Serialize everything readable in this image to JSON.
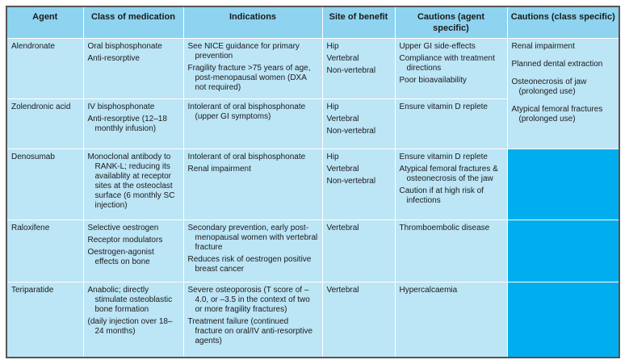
{
  "table": {
    "header": [
      "Agent",
      "Class of medication",
      "Indications",
      "Site of benefit",
      "Cautions (agent specific)",
      "Cautions (class specific)"
    ],
    "rows": [
      {
        "agent": "Alendronate",
        "cells": [
          [
            "Oral bisphosphonate",
            "Anti-resorptive"
          ],
          [
            "See NICE guidance for primary prevention",
            "Fragility fracture >75 years of age, post-menopausal women (DXA not required)"
          ],
          [
            "Hip",
            "Vertebral",
            "Non-vertebral"
          ],
          [
            "Upper GI side-effects",
            "Compliance with treatment directions",
            "Poor bioavailability"
          ]
        ],
        "class_cautions": [
          "Renal impairment",
          "Planned dental extraction",
          "Osteonecrosis of jaw (prolonged use)",
          "Atypical femoral fractures (prolonged use)"
        ]
      },
      {
        "agent": "Zolendronic acid",
        "cells": [
          [
            "IV bisphosphonate",
            "Anti-resorptive (12–18 monthly infusion)"
          ],
          [
            "Intolerant of oral bisphosphonate (upper GI symptoms)"
          ],
          [
            "Hip",
            "Vertebral",
            "Non-vertebral"
          ],
          [
            "Ensure vitamin D replete"
          ]
        ]
      },
      {
        "agent": "Denosumab",
        "cells": [
          [
            "Monoclonal antibody to RANK-L; reducing its availablity at receptor sites at the osteoclast surface (6 monthly SC injection)"
          ],
          [
            "Intolerant of oral bisphosphonate",
            "Renal impairment"
          ],
          [
            "Hip",
            "Vertebral",
            "Non-vertebral"
          ],
          [
            "Ensure vitamin D replete",
            "Atypical femoral fractures & osteonecrosis of the jaw",
            "Caution if at high risk of infections"
          ]
        ]
      },
      {
        "agent": "Raloxifene",
        "cells": [
          [
            "Selective oestrogen",
            "Receptor modulators",
            "Oestrogen-agonist effects on bone"
          ],
          [
            "Secondary prevention, early post-menopausal women with vertebral fracture",
            "Reduces risk of oestrogen positive breast cancer"
          ],
          [
            "Vertebral"
          ],
          [
            "Thromboembolic disease"
          ]
        ]
      },
      {
        "agent": "Teriparatide",
        "cells": [
          [
            "Anabolic; directly stimulate osteoblastic bone formation",
            "(daily injection over 18–24 months)"
          ],
          [
            "Severe osteoporosis (T score of –4.0, or –3.5 in the context of two or more fragility fractures)",
            "Treatment failure (continued fracture on oral/IV anti-resorptive agents)"
          ],
          [
            "Vertebral"
          ],
          [
            "Hypercalcaemia"
          ]
        ]
      }
    ]
  }
}
